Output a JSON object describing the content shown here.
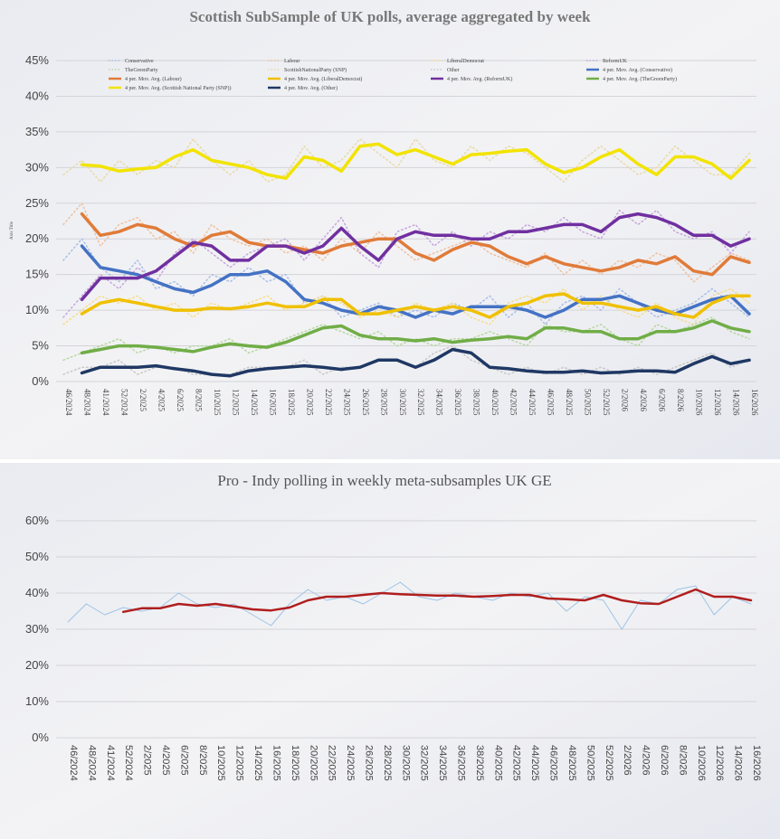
{
  "chart_data": [
    {
      "type": "line",
      "title": "Scottish SubSample of UK polls,  average aggregated by week",
      "ylabel": "Axis Title",
      "categories": [
        "46/2024",
        "48/2024",
        "41/2024",
        "52/2024",
        "2/2025",
        "4/2025",
        "6/2025",
        "8/2025",
        "10/2025",
        "12/2025",
        "14/2025",
        "16/2025",
        "18/2025",
        "20/2025",
        "22/2025",
        "24/2025",
        "26/2025",
        "28/2025",
        "30/2025",
        "32/2025",
        "34/2025",
        "36/2025",
        "38/2025",
        "40/2025",
        "42/2025",
        "44/2025",
        "46/2025",
        "48/2025",
        "50/2025",
        "52/2025",
        "2/2026",
        "4/2026",
        "6/2026",
        "8/2026",
        "10/2026",
        "12/2026",
        "14/2026",
        "16/2026"
      ],
      "ylim": [
        0,
        45
      ],
      "yticks": [
        {
          "value": 0,
          "label": "0%"
        },
        {
          "value": 5,
          "label": "5%"
        },
        {
          "value": 10,
          "label": "10%"
        },
        {
          "value": 15,
          "label": "15%"
        },
        {
          "value": 20,
          "label": "20%"
        },
        {
          "value": 25,
          "label": "25%"
        },
        {
          "value": 30,
          "label": "30%"
        },
        {
          "value": 35,
          "label": "35%"
        },
        {
          "value": 40,
          "label": "40%"
        },
        {
          "value": 45,
          "label": "45%"
        }
      ],
      "grid": true,
      "series": [
        {
          "name": "Conservative",
          "color": "#a9bde6",
          "dashed": true,
          "values": [
            17,
            20,
            16,
            14,
            17,
            13,
            14,
            12,
            15,
            14,
            16,
            14,
            15,
            11,
            12,
            9,
            10,
            11,
            9,
            10,
            9,
            11,
            10,
            12,
            9,
            11,
            8,
            11,
            12,
            10,
            13,
            11,
            9,
            10,
            11,
            13,
            11,
            9
          ]
        },
        {
          "name": "Labour",
          "color": "#f0c19d",
          "dashed": true,
          "values": [
            22,
            25,
            19,
            22,
            23,
            20,
            21,
            18,
            22,
            20,
            19,
            20,
            18,
            19,
            17,
            20,
            18,
            21,
            19,
            17,
            18,
            19,
            20,
            18,
            17,
            16,
            18,
            15,
            17,
            15,
            17,
            16,
            18,
            17,
            14,
            16,
            18,
            17
          ]
        },
        {
          "name": "LiberalDemocrat",
          "color": "#f5dd8a",
          "dashed": true,
          "values": [
            8,
            10,
            12,
            11,
            12,
            10,
            11,
            9,
            11,
            10,
            11,
            12,
            10,
            11,
            12,
            11,
            9,
            10,
            9,
            11,
            10,
            11,
            9,
            8,
            11,
            12,
            11,
            13,
            10,
            12,
            10,
            9,
            11,
            9,
            8,
            12,
            13,
            11
          ]
        },
        {
          "name": "ReformUK",
          "color": "#c6a6dc",
          "dashed": true,
          "values": [
            9,
            12,
            15,
            13,
            16,
            14,
            18,
            20,
            18,
            16,
            18,
            19,
            20,
            17,
            20,
            23,
            18,
            16,
            21,
            22,
            19,
            21,
            19,
            21,
            20,
            22,
            21,
            23,
            21,
            20,
            24,
            22,
            24,
            21,
            20,
            21,
            18,
            21
          ]
        },
        {
          "name": "TheGreenParty",
          "color": "#b6d8a0",
          "dashed": true,
          "values": [
            3,
            4,
            5,
            6,
            4,
            5,
            4,
            5,
            5,
            6,
            4,
            5,
            6,
            7,
            8,
            7,
            6,
            7,
            5,
            6,
            5,
            6,
            6,
            7,
            6,
            5,
            8,
            7,
            7,
            8,
            6,
            5,
            8,
            7,
            8,
            9,
            7,
            6
          ]
        },
        {
          "name": "ScottishNationalParty (SNP)",
          "color": "#e8d9a6",
          "dashed": true,
          "values": [
            29,
            31,
            28,
            31,
            29,
            31,
            30,
            34,
            31,
            29,
            31,
            28,
            29,
            33,
            30,
            31,
            34,
            32,
            30,
            34,
            31,
            30,
            33,
            31,
            33,
            32,
            30,
            28,
            31,
            33,
            31,
            29,
            30,
            33,
            31,
            29,
            29,
            32
          ]
        },
        {
          "name": "Other",
          "color": "#c8c8c8",
          "dashed": true,
          "values": [
            1,
            2,
            2,
            3,
            1,
            2,
            2,
            1,
            1,
            1,
            2,
            2,
            2,
            3,
            1,
            2,
            2,
            3,
            3,
            2,
            4,
            5,
            3,
            2,
            1,
            2,
            1,
            2,
            1,
            2,
            1,
            2,
            1,
            2,
            3,
            4,
            2,
            3
          ]
        },
        {
          "name": "4 per. Mov. Avg. (Conservative)",
          "color": "#4472c4",
          "values": [
            null,
            19.0,
            16.0,
            15.5,
            15.0,
            14.0,
            13.0,
            12.5,
            13.5,
            15.0,
            15.0,
            15.5,
            14.0,
            11.5,
            11.0,
            10.0,
            9.5,
            10.5,
            10.0,
            9.0,
            10.0,
            9.5,
            10.5,
            10.5,
            10.5,
            10.0,
            9.0,
            10.0,
            11.5,
            11.5,
            12.0,
            11.0,
            10.0,
            9.5,
            10.5,
            11.5,
            12.0,
            9.5
          ]
        },
        {
          "name": "4 per. Mov. Avg. (Labour)",
          "color": "#e07b39",
          "values": [
            null,
            23.5,
            20.5,
            21.0,
            22.0,
            21.5,
            20.0,
            19.0,
            20.5,
            21.0,
            19.5,
            19.0,
            19.0,
            18.5,
            18.0,
            19.0,
            19.5,
            20.0,
            20.0,
            18.0,
            17.0,
            18.5,
            19.5,
            19.0,
            17.5,
            16.5,
            17.5,
            16.5,
            16.0,
            15.5,
            16.0,
            17.0,
            16.5,
            17.5,
            15.5,
            15.0,
            17.5,
            16.7
          ]
        },
        {
          "name": "4 per. Mov. Avg. (LiberalDemocrat)",
          "color": "#f0c000",
          "values": [
            null,
            9.5,
            11.0,
            11.5,
            11.0,
            10.5,
            10.0,
            10.0,
            10.3,
            10.2,
            10.5,
            11.0,
            10.5,
            10.5,
            11.5,
            11.5,
            9.5,
            9.5,
            10.0,
            10.5,
            10.0,
            10.5,
            10.0,
            9.0,
            10.5,
            11.0,
            12.0,
            12.3,
            11.0,
            11.0,
            10.5,
            10.0,
            10.5,
            9.5,
            9.0,
            11.0,
            12.0,
            12.0
          ]
        },
        {
          "name": "4 per. Mov. Avg. (ReformUK)",
          "color": "#7030a0",
          "values": [
            null,
            11.5,
            14.5,
            14.5,
            14.5,
            15.5,
            17.5,
            19.5,
            19.0,
            17.0,
            17.0,
            19.0,
            19.0,
            18.0,
            19.0,
            21.5,
            19.0,
            17.0,
            20.0,
            21.0,
            20.5,
            20.5,
            20.0,
            20.0,
            21.0,
            21.0,
            21.5,
            22.0,
            22.0,
            21.0,
            23.0,
            23.5,
            23.0,
            22.0,
            20.5,
            20.5,
            19.0,
            20.0
          ]
        },
        {
          "name": "4 per. Mov. Avg. (TheGreenParty)",
          "color": "#70ad47",
          "values": [
            null,
            4.0,
            4.5,
            5.0,
            5.0,
            4.8,
            4.5,
            4.2,
            4.8,
            5.3,
            5.0,
            4.8,
            5.5,
            6.5,
            7.5,
            7.8,
            6.5,
            6.0,
            6.0,
            5.7,
            6.0,
            5.5,
            5.8,
            6.0,
            6.3,
            6.0,
            7.5,
            7.5,
            7.0,
            7.0,
            6.0,
            6.0,
            7.0,
            7.0,
            7.5,
            8.5,
            7.5,
            7.0
          ]
        },
        {
          "name": "4 per. Mov. Avg. (Scottish National Party (SNP))",
          "color": "#f2e300",
          "values": [
            null,
            30.4,
            30.2,
            29.5,
            29.8,
            30.0,
            31.5,
            32.5,
            31.0,
            30.5,
            30.0,
            29.0,
            28.5,
            31.5,
            31.0,
            29.5,
            33.0,
            33.3,
            31.8,
            32.5,
            31.5,
            30.5,
            31.8,
            32.0,
            32.3,
            32.5,
            30.5,
            29.3,
            30.0,
            31.5,
            32.5,
            30.5,
            29.0,
            31.5,
            31.5,
            30.5,
            28.5,
            31.0
          ]
        },
        {
          "name": "4 per. Mov. Avg. (Other)",
          "color": "#1f3864",
          "values": [
            null,
            1.2,
            2.0,
            2.0,
            2.0,
            2.2,
            1.8,
            1.5,
            1.0,
            0.8,
            1.5,
            1.8,
            2.0,
            2.2,
            2.0,
            1.7,
            2.0,
            3.0,
            3.0,
            2.0,
            3.0,
            4.5,
            4.0,
            2.0,
            1.8,
            1.5,
            1.3,
            1.3,
            1.5,
            1.2,
            1.3,
            1.5,
            1.5,
            1.3,
            2.5,
            3.5,
            2.5,
            3.0
          ]
        }
      ]
    },
    {
      "type": "line",
      "title": "Pro - Indy polling in weekly meta-subsamples UK GE",
      "categories": [
        "46/2024",
        "48/2024",
        "41/2024",
        "52/2024",
        "2/2025",
        "4/2025",
        "6/2025",
        "8/2025",
        "10/2025",
        "12/2025",
        "14/2025",
        "16/2025",
        "18/2025",
        "20/2025",
        "22/2025",
        "24/2025",
        "26/2025",
        "28/2025",
        "30/2025",
        "32/2025",
        "34/2025",
        "36/2025",
        "38/2025",
        "40/2025",
        "42/2025",
        "44/2025",
        "46/2025",
        "48/2025",
        "50/2025",
        "52/2025",
        "2/2026",
        "4/2026",
        "6/2026",
        "8/2026",
        "10/2026",
        "12/2026",
        "14/2026",
        "16/2026"
      ],
      "ylim": [
        0,
        60
      ],
      "yticks": [
        {
          "value": 0,
          "label": "0%"
        },
        {
          "value": 10,
          "label": "10%"
        },
        {
          "value": 20,
          "label": "20%"
        },
        {
          "value": 30,
          "label": "30%"
        },
        {
          "value": 40,
          "label": "40%"
        },
        {
          "value": 50,
          "label": "50%"
        },
        {
          "value": 60,
          "label": "60%"
        }
      ],
      "grid": true,
      "series": [
        {
          "color": "#9dc3e6",
          "thin": true,
          "values": [
            32,
            37,
            34,
            36,
            35,
            36,
            40,
            37,
            36,
            37,
            34,
            31,
            37,
            41,
            38,
            39,
            37,
            40,
            43,
            39,
            38,
            40,
            39,
            38,
            40,
            39,
            40,
            35,
            39,
            38,
            30,
            38,
            37,
            41,
            42,
            34,
            39,
            37
          ]
        },
        {
          "color": "#b01e1e",
          "values": [
            null,
            null,
            null,
            34.8,
            35.8,
            35.8,
            37.0,
            36.5,
            37.0,
            36.3,
            35.5,
            35.2,
            36.0,
            38.0,
            39.0,
            39.0,
            39.5,
            40.0,
            39.7,
            39.5,
            39.3,
            39.3,
            39.0,
            39.2,
            39.5,
            39.5,
            38.5,
            38.3,
            38.0,
            39.5,
            38.0,
            37.2,
            37.0,
            39.0,
            41.0,
            39.0,
            39.0,
            38.0
          ]
        }
      ]
    }
  ]
}
